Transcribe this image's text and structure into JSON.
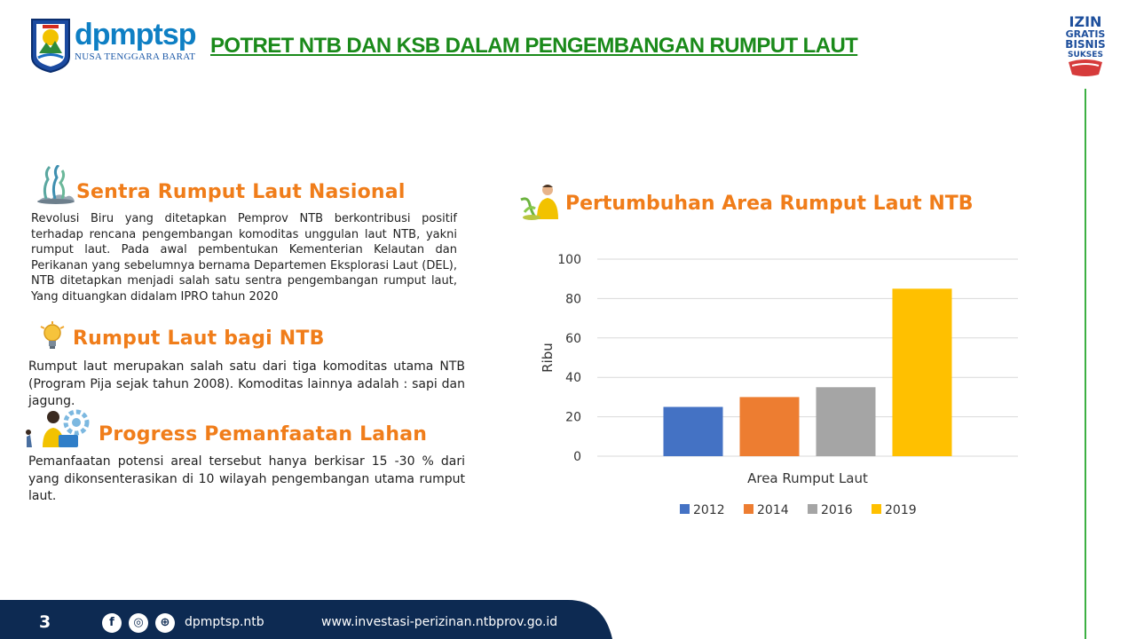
{
  "header": {
    "brand_name": "dpmptsp",
    "brand_sub": "NUSA TENGGARA BARAT",
    "title": "POTRET NTB DAN KSB DALAM PENGEMBANGAN RUMPUT LAUT",
    "izin_logo_lines": [
      "IZIN",
      "GRATIS",
      "BISNIS",
      "SUKSES"
    ],
    "title_color": "#1a8a1a",
    "accent_color": "#f07d1a"
  },
  "sections": [
    {
      "title": "Sentra Rumput Laut Nasional",
      "icon": "seaweed-icon",
      "text": "Revolusi Biru yang ditetapkan Pemprov NTB berkontribusi positif terhadap rencana pengembangan komoditas unggulan laut NTB, yakni rumput laut. Pada awal pembentukan Kementerian Kelautan dan Perikanan yang sebelumnya bernama Departemen Eksplorasi Laut (DEL), NTB ditetapkan menjadi salah satu sentra pengembangan rumput laut, Yang dituangkan didalam IPRO tahun 2020"
    },
    {
      "title": "Rumput Laut bagi NTB",
      "icon": "lightbulb-icon",
      "text": "Rumput laut merupakan salah satu dari tiga komoditas utama NTB (Program Pija sejak tahun 2008). Komoditas lainnya adalah : sapi dan jagung."
    },
    {
      "title": "Progress Pemanfaatan Lahan",
      "icon": "worker-gears-icon",
      "text": "Pemanfaatan potensi areal tersebut hanya berkisar 15 -30 % dari yang dikonsenterasikan di 10 wilayah pengembangan utama rumput laut."
    }
  ],
  "chart_section": {
    "title": "Pertumbuhan Area Rumput Laut NTB",
    "icon": "farmer-icon"
  },
  "chart_data": {
    "type": "bar",
    "categories": [
      "Area Rumput Laut"
    ],
    "series": [
      {
        "name": "2012",
        "values": [
          25
        ],
        "color": "#4472c4"
      },
      {
        "name": "2014",
        "values": [
          30
        ],
        "color": "#ed7d31"
      },
      {
        "name": "2016",
        "values": [
          35
        ],
        "color": "#a5a5a5"
      },
      {
        "name": "2019",
        "values": [
          85
        ],
        "color": "#ffc000"
      }
    ],
    "title": "",
    "xlabel": "Area Rumput Laut",
    "ylabel": "Ribu",
    "ylim": [
      0,
      100
    ],
    "yticks": [
      0,
      20,
      40,
      60,
      80,
      100
    ],
    "grid": true,
    "legend": "bottom"
  },
  "footer": {
    "page_number": "3",
    "social_icons": [
      "facebook-icon",
      "instagram-icon",
      "globe-icon"
    ],
    "handle": "dpmptsp.ntb",
    "website": "www.investasi-perizinan.ntbprov.go.id",
    "bg_color": "#0d2a52"
  }
}
